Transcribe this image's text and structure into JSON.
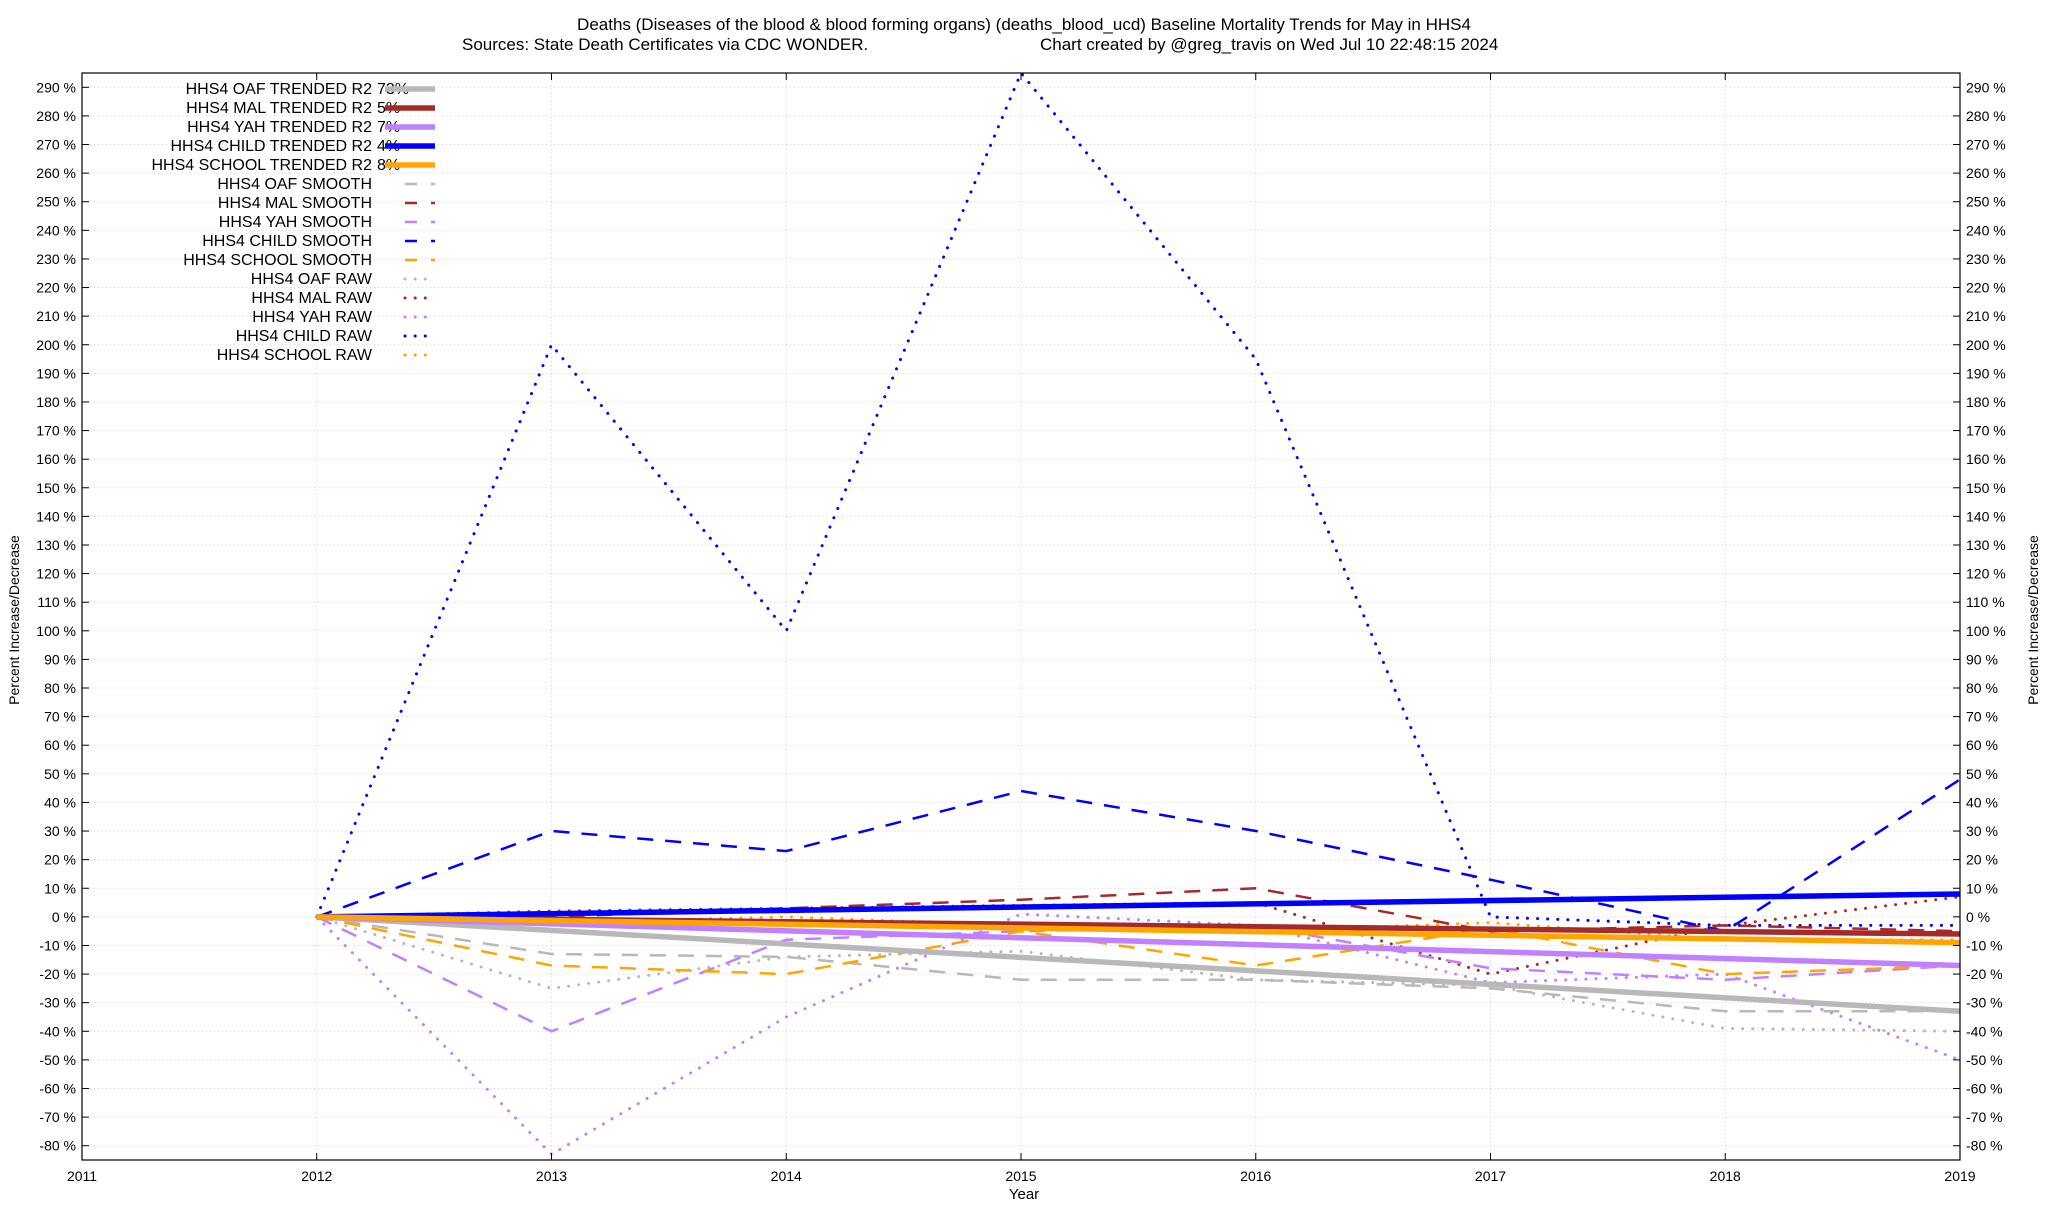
{
  "chart_data": {
    "type": "line",
    "title_line1": "Deaths (Diseases of the blood & blood forming organs) (deaths_blood_ucd)  Baseline Mortality Trends for May in HHS4",
    "title_line2_left": "Sources: State Death Certificates via CDC WONDER.",
    "title_line2_right": "Chart created by @greg_travis on Wed Jul 10 22:48:15 2024",
    "xlabel": "Year",
    "ylabel_left": "Percent Increase/Decrease",
    "ylabel_right": "Percent Increase/Decrease",
    "xlim": [
      2011,
      2019
    ],
    "ylim": [
      -85,
      295
    ],
    "x_ticks": [
      2011,
      2012,
      2013,
      2014,
      2015,
      2016,
      2017,
      2018,
      2019
    ],
    "y_ticks": [
      -80,
      -70,
      -60,
      -50,
      -40,
      -30,
      -20,
      -10,
      0,
      10,
      20,
      30,
      40,
      50,
      60,
      70,
      80,
      90,
      100,
      110,
      120,
      130,
      140,
      150,
      160,
      170,
      180,
      190,
      200,
      210,
      220,
      230,
      240,
      250,
      260,
      270,
      280,
      290
    ],
    "y_tick_suffix": " %",
    "grid": true,
    "legend_position": "top-left",
    "colors": {
      "oaf": "#b8b8b8",
      "mal": "#a52a2a",
      "yah": "#c080ff",
      "child": "#0000ff",
      "school": "#ffa500"
    },
    "series": [
      {
        "name": "HHS4 OAF TRENDED R2",
        "r2": "73%",
        "group": "oaf",
        "style": "trend",
        "x": [
          2012,
          2019
        ],
        "values": [
          0,
          -33
        ]
      },
      {
        "name": "HHS4 MAL TRENDED R2",
        "r2": "5%",
        "group": "mal",
        "style": "trend",
        "x": [
          2012,
          2019
        ],
        "values": [
          0,
          -6
        ]
      },
      {
        "name": "HHS4 YAH TRENDED R2",
        "r2": "7%",
        "group": "yah",
        "style": "trend",
        "x": [
          2012,
          2019
        ],
        "values": [
          0,
          -17
        ]
      },
      {
        "name": "HHS4 CHILD TRENDED R2",
        "r2": "4%",
        "group": "child",
        "style": "trend",
        "x": [
          2012,
          2019
        ],
        "values": [
          0,
          8
        ]
      },
      {
        "name": "HHS4 SCHOOL TRENDED R2",
        "r2": "8%",
        "group": "school",
        "style": "trend",
        "x": [
          2012,
          2019
        ],
        "values": [
          0,
          -9
        ]
      },
      {
        "name": "HHS4 OAF SMOOTH",
        "group": "oaf",
        "style": "smooth",
        "x": [
          2012,
          2013,
          2014,
          2015,
          2016,
          2017,
          2018,
          2019
        ],
        "values": [
          0,
          -13,
          -14,
          -22,
          -22,
          -25,
          -33,
          -33
        ]
      },
      {
        "name": "HHS4 MAL SMOOTH",
        "group": "mal",
        "style": "smooth",
        "x": [
          2012,
          2013,
          2014,
          2015,
          2016,
          2017,
          2018,
          2019
        ],
        "values": [
          0,
          0,
          3,
          6,
          10,
          -5,
          -3,
          -5
        ]
      },
      {
        "name": "HHS4 YAH SMOOTH",
        "group": "yah",
        "style": "smooth",
        "x": [
          2012,
          2013,
          2014,
          2015,
          2016,
          2017,
          2018,
          2019
        ],
        "values": [
          0,
          -40,
          -8,
          -5,
          -3,
          -18,
          -22,
          -17
        ]
      },
      {
        "name": "HHS4 CHILD SMOOTH",
        "group": "child",
        "style": "smooth",
        "x": [
          2012,
          2013,
          2014,
          2015,
          2016,
          2017,
          2018,
          2019
        ],
        "values": [
          0,
          30,
          23,
          44,
          30,
          13,
          -5,
          48
        ]
      },
      {
        "name": "HHS4 SCHOOL SMOOTH",
        "group": "school",
        "style": "smooth",
        "x": [
          2012,
          2013,
          2014,
          2015,
          2016,
          2017,
          2018,
          2019
        ],
        "values": [
          0,
          -17,
          -20,
          -5,
          -17,
          -4,
          -20,
          -17
        ]
      },
      {
        "name": "HHS4 OAF RAW",
        "group": "oaf",
        "style": "raw",
        "x": [
          2012,
          2013,
          2014,
          2015,
          2016,
          2017,
          2018,
          2019
        ],
        "values": [
          0,
          -25,
          -14,
          -12,
          -22,
          -24,
          -39,
          -40
        ]
      },
      {
        "name": "HHS4 MAL RAW",
        "group": "mal",
        "style": "raw",
        "x": [
          2012,
          2013,
          2014,
          2015,
          2016,
          2017,
          2018,
          2019
        ],
        "values": [
          0,
          2,
          3,
          4,
          5,
          -20,
          -3,
          7
        ]
      },
      {
        "name": "HHS4 YAH RAW",
        "group": "yah",
        "style": "raw",
        "x": [
          2012,
          2013,
          2014,
          2015,
          2016,
          2017,
          2018,
          2019
        ],
        "values": [
          0,
          -83,
          -35,
          1,
          -3,
          -23,
          -20,
          -50
        ]
      },
      {
        "name": "HHS4 CHILD RAW",
        "group": "child",
        "style": "raw",
        "x": [
          2012,
          2013,
          2014,
          2015,
          2016,
          2017,
          2018,
          2019
        ],
        "values": [
          0,
          200,
          100,
          295,
          195,
          0,
          -3,
          -3
        ]
      },
      {
        "name": "HHS4 SCHOOL RAW",
        "group": "school",
        "style": "raw",
        "x": [
          2012,
          2013,
          2014,
          2015,
          2016,
          2017,
          2018,
          2019
        ],
        "values": [
          0,
          -2,
          0,
          -3,
          -5,
          -2,
          -8,
          -8
        ]
      }
    ]
  }
}
